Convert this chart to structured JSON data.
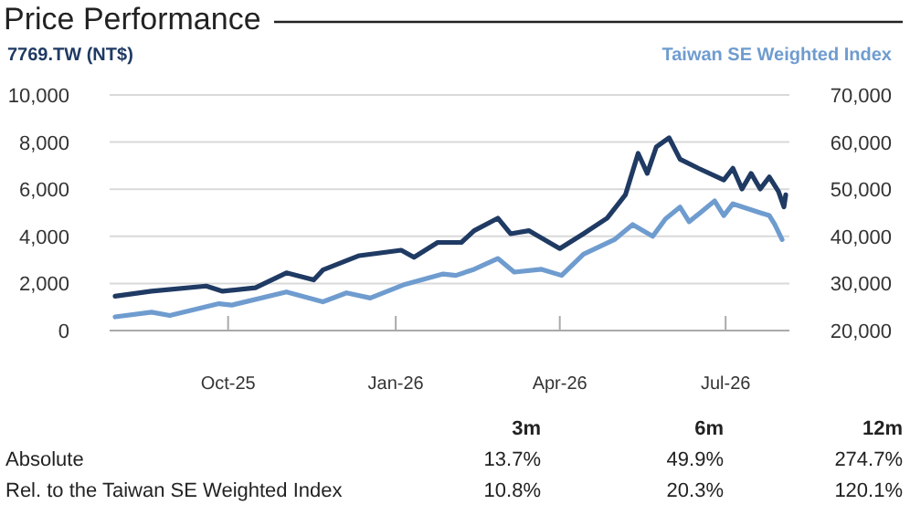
{
  "chart_data": {
    "type": "line",
    "title": "Price Performance",
    "ylabel": "7769.TW (NT$)",
    "y2label": "Taiwan SE Weighted Index",
    "xlim": [
      "2025-07-28",
      "2026-08-05"
    ],
    "xticks": [
      {
        "value": "2025-10-01",
        "label": "Oct-25"
      },
      {
        "value": "2026-01-01",
        "label": "Jan-26"
      },
      {
        "value": "2026-04-01",
        "label": "Apr-26"
      },
      {
        "value": "2026-07-01",
        "label": "Jul-26"
      }
    ],
    "ylim": [
      0,
      10000
    ],
    "yticks": [
      0,
      {
        "value": 2000,
        "label": "2,000"
      },
      {
        "value": 4000,
        "label": "4,000"
      },
      {
        "value": 6000,
        "label": "6,000"
      },
      {
        "value": 8000,
        "label": "8,000"
      },
      {
        "value": 10000,
        "label": "10,000"
      }
    ],
    "y2lim": [
      20000,
      70000
    ],
    "y2ticks": [
      {
        "value": 20000,
        "label": "20,000"
      },
      {
        "value": 30000,
        "label": "30,000"
      },
      {
        "value": 40000,
        "label": "40,000"
      },
      {
        "value": 50000,
        "label": "50,000"
      },
      {
        "value": 60000,
        "label": "60,000"
      },
      {
        "value": 70000,
        "label": "70,000"
      }
    ],
    "grid": "y",
    "series": [
      {
        "color": "#1f3a63",
        "x": [
          "2025-07-31",
          "2025-08-20",
          "2025-09-19",
          "2025-09-28",
          "2025-10-16",
          "2025-11-02",
          "2025-11-17",
          "2025-11-22",
          "2025-12-12",
          "2026-01-04",
          "2026-01-11",
          "2026-01-24",
          "2026-02-06",
          "2026-02-13",
          "2026-02-26",
          "2026-03-05",
          "2026-03-15",
          "2026-04-01",
          "2026-04-14",
          "2026-04-27",
          "2026-05-07",
          "2026-05-14",
          "2026-05-19",
          "2026-05-24",
          "2026-05-31",
          "2026-06-06",
          "2026-06-16",
          "2026-06-30",
          "2026-07-05",
          "2026-07-10",
          "2026-07-15",
          "2026-07-20",
          "2026-07-25",
          "2026-07-30",
          "2026-08-02",
          "2026-08-03"
        ],
        "values": [
          1460,
          1670,
          1890,
          1670,
          1820,
          2450,
          2150,
          2570,
          3180,
          3410,
          3110,
          3740,
          3740,
          4240,
          4770,
          4110,
          4240,
          3480,
          4110,
          4770,
          5760,
          7520,
          6670,
          7800,
          8180,
          7270,
          6890,
          6390,
          6890,
          6010,
          6670,
          6010,
          6520,
          5910,
          5250,
          5760
        ]
      },
      {
        "color": "#6f9ccf",
        "axis": "y2",
        "x": [
          "2025-07-31",
          "2025-08-20",
          "2025-08-30",
          "2025-09-26",
          "2025-10-03",
          "2025-11-02",
          "2025-11-22",
          "2025-12-05",
          "2025-12-18",
          "2026-01-06",
          "2026-01-27",
          "2026-02-03",
          "2026-02-13",
          "2026-02-26",
          "2026-03-07",
          "2026-03-22",
          "2026-04-02",
          "2026-04-14",
          "2026-05-01",
          "2026-05-11",
          "2026-05-22",
          "2026-05-29",
          "2026-06-06",
          "2026-06-11",
          "2026-06-25",
          "2026-06-30",
          "2026-07-05",
          "2026-07-20",
          "2026-07-25",
          "2026-07-28",
          "2026-08-01"
        ],
        "values": [
          22900,
          23900,
          23200,
          25700,
          25400,
          28200,
          26100,
          28000,
          26900,
          29800,
          32000,
          31700,
          33000,
          35300,
          32400,
          33000,
          31700,
          36200,
          39300,
          42500,
          40000,
          43700,
          46200,
          43100,
          47500,
          44400,
          46900,
          45000,
          44400,
          42500,
          39300
        ]
      }
    ],
    "annotations": [
      "3m",
      "6m",
      "12m",
      "Absolute",
      "13.7%",
      "49.9%",
      "274.7%",
      "Rel. to the Taiwan SE Weighted Index",
      "10.8%",
      "20.3%",
      "120.1%"
    ]
  }
}
